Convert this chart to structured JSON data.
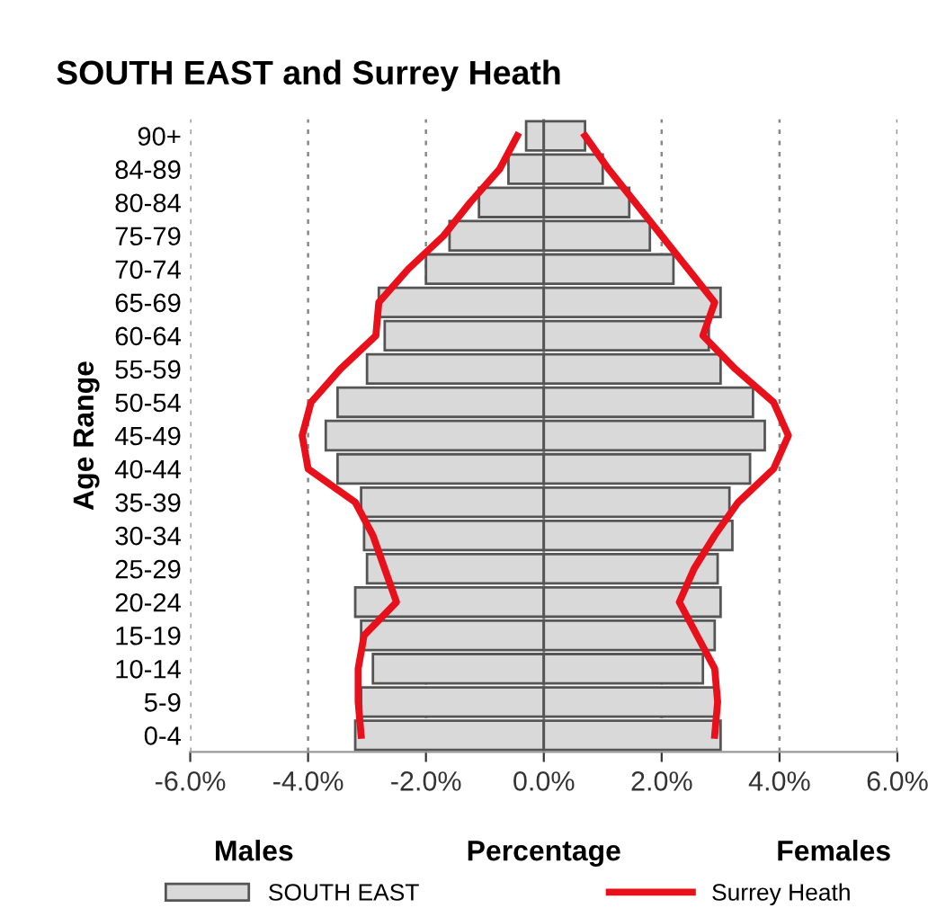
{
  "chart_data": {
    "type": "bar",
    "orientation": "horizontal",
    "title": "SOUTH EAST and Surrey Heath",
    "xlabel": "Percentage",
    "ylabel": "Age Range",
    "annotations": [
      "Males",
      "Females"
    ],
    "categories": [
      "90+",
      "84-89",
      "80-84",
      "75-79",
      "70-74",
      "65-69",
      "60-64",
      "55-59",
      "50-54",
      "45-49",
      "40-44",
      "35-39",
      "30-34",
      "25-29",
      "20-24",
      "15-19",
      "10-14",
      "5-9",
      "0-4"
    ],
    "series": [
      {
        "name": "SOUTH EAST",
        "color": "#d9d9d9",
        "values": [
          -0.3,
          -0.6,
          -1.1,
          -1.6,
          -2.0,
          -2.8,
          -2.7,
          -3.0,
          -3.5,
          -3.7,
          -3.5,
          -3.1,
          -3.05,
          -3.0,
          -3.2,
          -3.1,
          -2.9,
          -3.1,
          -3.2
        ]
      },
      {
        "color": "#d9d9d9",
        "values": [
          0.7,
          1.0,
          1.45,
          1.8,
          2.2,
          3.0,
          2.8,
          3.0,
          3.55,
          3.75,
          3.5,
          3.15,
          3.2,
          2.95,
          3.0,
          2.9,
          2.7,
          2.95,
          3.0
        ]
      },
      {
        "name": "Surrey Heath",
        "type": "line",
        "color": "#e8101a",
        "values": [
          -0.45,
          -0.75,
          -1.25,
          -1.7,
          -2.3,
          -2.8,
          -2.85,
          -3.45,
          -3.95,
          -4.1,
          -4.0,
          -3.2,
          -2.9,
          -2.7,
          -2.5,
          -3.05,
          -3.15,
          -3.15,
          -3.1
        ]
      },
      {
        "type": "line",
        "color": "#e8101a",
        "values": [
          0.7,
          1.1,
          1.55,
          2.0,
          2.45,
          2.9,
          2.7,
          3.25,
          3.9,
          4.15,
          3.9,
          3.3,
          2.9,
          2.55,
          2.3,
          2.6,
          2.9,
          2.95,
          2.9
        ]
      }
    ],
    "xlim": [
      -6,
      6
    ],
    "xticks": [
      {
        "value": -6,
        "label": "-6.0%"
      },
      {
        "value": -4,
        "label": "-4.0%"
      },
      {
        "value": -2,
        "label": "-2.0%"
      },
      {
        "value": 0,
        "label": "0.0%"
      },
      {
        "value": 2,
        "label": "2.0%"
      },
      {
        "value": 4,
        "label": "4.0%"
      },
      {
        "value": 6,
        "label": "6.0%"
      }
    ],
    "stacked": true,
    "grid": "x",
    "legend": "bottom",
    "line_style": "solid"
  }
}
